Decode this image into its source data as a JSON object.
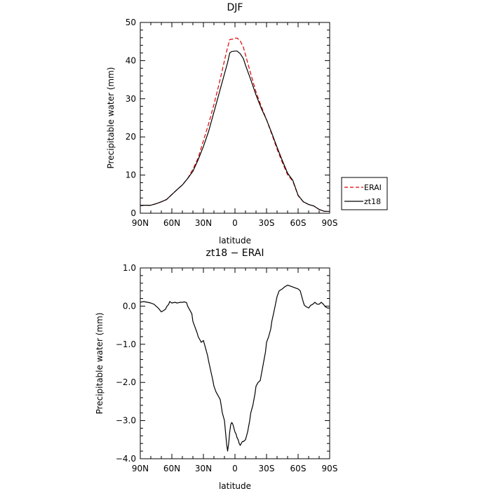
{
  "chart_data": [
    {
      "type": "line",
      "title": "DJF",
      "xlabel": "latitude",
      "ylabel": "Precipitable water (mm)",
      "xticks": [
        {
          "value": 90,
          "label": "90N"
        },
        {
          "value": 60,
          "label": "60N"
        },
        {
          "value": 30,
          "label": "30N"
        },
        {
          "value": 0,
          "label": "0"
        },
        {
          "value": -30,
          "label": "30S"
        },
        {
          "value": -60,
          "label": "60S"
        },
        {
          "value": -90,
          "label": "90S"
        }
      ],
      "xlim": [
        90,
        -90
      ],
      "ylim": [
        0,
        50
      ],
      "yticks": [
        {
          "value": 0,
          "label": "0"
        },
        {
          "value": 10,
          "label": "10"
        },
        {
          "value": 20,
          "label": "20"
        },
        {
          "value": 30,
          "label": "30"
        },
        {
          "value": 40,
          "label": "40"
        },
        {
          "value": 50,
          "label": "50"
        }
      ],
      "legend": {
        "placement": "outside-right"
      },
      "series": [
        {
          "name": "ERAI",
          "color": "#e00000",
          "dash": "dashed",
          "x": [
            90,
            80,
            75,
            70,
            65,
            60,
            55,
            50,
            45,
            40,
            35,
            30,
            25,
            20,
            15,
            10,
            7,
            5,
            3,
            2,
            0,
            -2,
            -5,
            -8,
            -10,
            -15,
            -20,
            -25,
            -30,
            -35,
            -40,
            -45,
            -50,
            -55,
            -60,
            -65,
            -70,
            -75,
            -80,
            -85,
            -90
          ],
          "y": [
            2.1,
            2.1,
            2.5,
            3.0,
            3.6,
            4.9,
            6.2,
            7.4,
            9.1,
            11.5,
            14.5,
            19.0,
            23.5,
            28.5,
            34.0,
            40.0,
            43.5,
            45.5,
            45.6,
            45.6,
            45.9,
            45.9,
            45.2,
            43.5,
            41.5,
            36.5,
            31.8,
            28.0,
            24.5,
            20.7,
            16.8,
            13.3,
            10.1,
            8.4,
            4.6,
            3.0,
            2.3,
            1.9,
            1.0,
            0.5,
            0.5
          ]
        },
        {
          "name": "zt18",
          "color": "#000000",
          "dash": "solid",
          "x": [
            90,
            80,
            75,
            70,
            65,
            60,
            55,
            50,
            45,
            40,
            35,
            30,
            25,
            20,
            15,
            10,
            7,
            5,
            3,
            2,
            0,
            -2,
            -5,
            -8,
            -10,
            -15,
            -20,
            -25,
            -30,
            -35,
            -40,
            -45,
            -50,
            -55,
            -60,
            -65,
            -70,
            -75,
            -80,
            -85,
            -90
          ],
          "y": [
            2.1,
            2.1,
            2.5,
            3.0,
            3.6,
            4.9,
            6.2,
            7.4,
            9.1,
            11.0,
            14.0,
            17.5,
            21.5,
            26.5,
            31.5,
            36.5,
            39.5,
            42.0,
            42.4,
            42.4,
            42.5,
            42.5,
            41.8,
            40.5,
            38.8,
            35.0,
            31.0,
            27.5,
            24.5,
            21.0,
            17.3,
            13.8,
            10.5,
            8.6,
            4.7,
            3.0,
            2.3,
            1.9,
            1.0,
            0.5,
            0.5
          ]
        }
      ]
    },
    {
      "type": "line",
      "title": "zt18 − ERAI",
      "xlabel": "latitude",
      "ylabel": "Precipitable water (mm)",
      "xticks": [
        {
          "value": 90,
          "label": "90N"
        },
        {
          "value": 60,
          "label": "60N"
        },
        {
          "value": 30,
          "label": "30N"
        },
        {
          "value": 0,
          "label": "0"
        },
        {
          "value": -30,
          "label": "30S"
        },
        {
          "value": -60,
          "label": "60S"
        },
        {
          "value": -90,
          "label": "90S"
        }
      ],
      "xlim": [
        90,
        -90
      ],
      "ylim": [
        -4.0,
        1.0
      ],
      "yticks": [
        {
          "value": 1.0,
          "label": "1.0"
        },
        {
          "value": 0.0,
          "label": "0.0"
        },
        {
          "value": -1.0,
          "label": "−1.0"
        },
        {
          "value": -2.0,
          "label": "−2.0"
        },
        {
          "value": -3.0,
          "label": "−3.0"
        },
        {
          "value": -4.0,
          "label": "−4.0"
        }
      ],
      "series": [
        {
          "color": "#000000",
          "dash": "solid",
          "x": [
            90,
            87,
            83,
            80,
            77,
            75,
            73,
            70,
            68,
            66,
            65,
            63,
            62,
            60,
            57,
            55,
            52,
            50,
            48,
            46,
            45,
            43,
            41,
            40,
            38,
            36,
            35,
            33,
            32,
            30,
            28,
            26,
            25,
            23,
            21,
            20,
            18,
            16,
            14,
            12,
            10,
            9,
            8,
            7,
            6,
            5,
            4,
            3,
            2,
            1,
            0,
            -1,
            -2,
            -3,
            -4,
            -5,
            -6,
            -7,
            -8,
            -10,
            -12,
            -14,
            -15,
            -17,
            -19,
            -20,
            -22,
            -24,
            -25,
            -27,
            -29,
            -30,
            -32,
            -34,
            -35,
            -37,
            -40,
            -42,
            -45,
            -47,
            -50,
            -53,
            -55,
            -57,
            -60,
            -62,
            -63,
            -65,
            -66,
            -68,
            -70,
            -72,
            -74,
            -76,
            -78,
            -80,
            -82,
            -84,
            -86,
            -88,
            -90
          ],
          "y": [
            0.1,
            0.12,
            0.1,
            0.08,
            0.05,
            0.0,
            -0.05,
            -0.15,
            -0.12,
            -0.08,
            -0.02,
            0.05,
            0.12,
            0.08,
            0.1,
            0.08,
            0.1,
            0.1,
            0.11,
            0.09,
            0.0,
            -0.1,
            -0.2,
            -0.4,
            -0.55,
            -0.7,
            -0.8,
            -0.9,
            -0.95,
            -0.9,
            -1.1,
            -1.3,
            -1.45,
            -1.7,
            -1.95,
            -2.1,
            -2.25,
            -2.35,
            -2.45,
            -2.8,
            -3.0,
            -3.3,
            -3.6,
            -3.8,
            -3.6,
            -3.3,
            -3.1,
            -3.05,
            -3.1,
            -3.2,
            -3.3,
            -3.35,
            -3.45,
            -3.5,
            -3.6,
            -3.65,
            -3.6,
            -3.55,
            -3.55,
            -3.5,
            -3.3,
            -3.0,
            -2.8,
            -2.6,
            -2.3,
            -2.1,
            -2.0,
            -1.95,
            -1.8,
            -1.5,
            -1.2,
            -0.95,
            -0.8,
            -0.6,
            -0.4,
            -0.15,
            0.25,
            0.4,
            0.45,
            0.5,
            0.55,
            0.52,
            0.5,
            0.48,
            0.45,
            0.4,
            0.3,
            0.1,
            0.02,
            -0.02,
            -0.05,
            0.02,
            0.05,
            0.1,
            0.05,
            0.05,
            0.1,
            0.05,
            -0.02,
            -0.05,
            -0.05
          ]
        }
      ]
    }
  ]
}
